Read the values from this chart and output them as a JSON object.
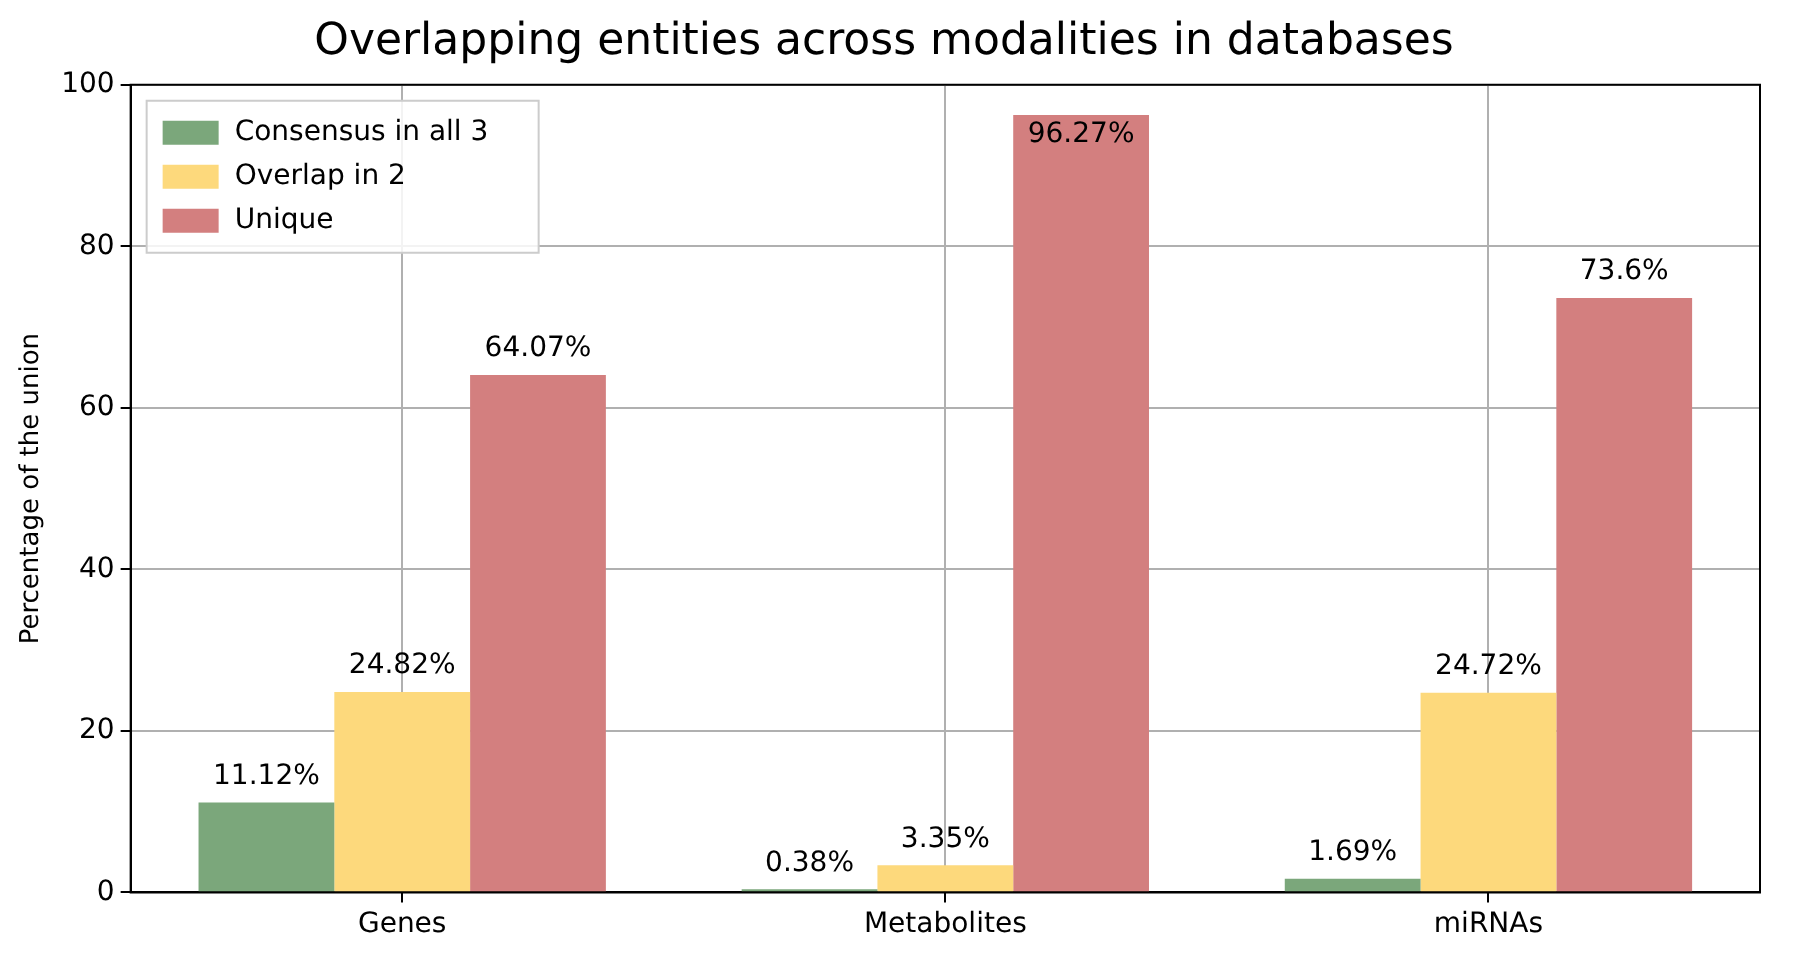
{
  "chart_data": {
    "type": "bar",
    "title": "Overlapping entities across modalities in databases",
    "ylabel": "Percentage of the union",
    "categories": [
      "Genes",
      "Metabolites",
      "miRNAs"
    ],
    "series": [
      {
        "name": "Consensus in all 3",
        "color": "#7ba77b",
        "values": [
          11.12,
          0.38,
          1.69
        ],
        "value_labels": [
          "11.12%",
          "0.38%",
          "1.69%"
        ]
      },
      {
        "name": "Overlap in 2",
        "color": "#fdd97c",
        "values": [
          24.82,
          3.35,
          24.72
        ],
        "value_labels": [
          "24.82%",
          "3.35%",
          "24.72%"
        ]
      },
      {
        "name": "Unique",
        "color": "#d37f7f",
        "values": [
          64.07,
          96.27,
          73.6
        ],
        "value_labels": [
          "64.07%",
          "96.27%",
          "73.6%"
        ]
      }
    ],
    "ylim": [
      0,
      100
    ],
    "yticks": [
      0,
      20,
      40,
      60,
      80,
      100
    ],
    "grid": true,
    "legend": "top left"
  }
}
